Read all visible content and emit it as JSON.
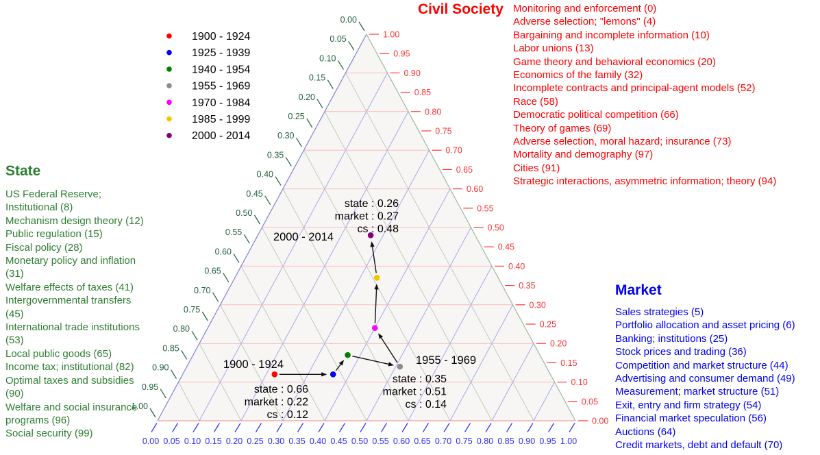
{
  "panels": {
    "civil_society": {
      "title": "Civil Society",
      "color": "#ff0000",
      "topics": [
        "Monitoring and enforcement (0)",
        "Adverse selection; \"lemons\" (4)",
        "Bargaining and incomplete information (10)",
        "Labor unions (13)",
        "Game theory and behavioral economics (20)",
        "Economics of the family (32)",
        "Incomplete contracts and principal-agent models (52)",
        "Race (58)",
        "Democratic political competition (66)",
        "Theory of games (69)",
        "Adverse selection, moral hazard; insurance (73)",
        "Mortality and demography (97)",
        "Cities (91)",
        "Strategic interactions, asymmetric information; theory (94)"
      ]
    },
    "state": {
      "title": "State",
      "color": "#2e7d32",
      "topics": [
        "US Federal Reserve; Institutional (8)",
        "Mechanism design theory (12)",
        "Public regulation (15)",
        "Fiscal policy (28)",
        "Monetary policy and inflation (31)",
        "Welfare effects of taxes (41)",
        "Intergovernmental transfers (45)",
        "International trade institutions (53)",
        "Local public goods (65)",
        "Income tax; institutional (82)",
        "Optimal taxes and subsidies (90)",
        "Welfare and social insurance programs (96)",
        "Social security (99)"
      ]
    },
    "market": {
      "title": "Market",
      "color": "#0000ee",
      "topics": [
        "Sales strategies (5)",
        "Portfolio allocation and asset pricing (6)",
        "Banking; institutions (25)",
        "Stock prices and trading (36)",
        "Competition and market structure (44)",
        "Advertising and consumer demand (49)",
        "Measurement; market structure (51)",
        "Exit, entry and firm strategy (54)",
        "Financial market speculation (56)",
        "Auctions (64)",
        "Credit markets, debt and default (70)"
      ]
    }
  },
  "legend": {
    "items": [
      {
        "label": "1900 - 1924",
        "color": "#ff0000"
      },
      {
        "label": "1925 - 1939",
        "color": "#0000ff"
      },
      {
        "label": "1940 - 1954",
        "color": "#008000"
      },
      {
        "label": "1955 - 1969",
        "color": "#8c8c8c"
      },
      {
        "label": "1970 - 1984",
        "color": "#ff00ff"
      },
      {
        "label": "1985 - 1999",
        "color": "#f5c400"
      },
      {
        "label": "2000 - 2014",
        "color": "#800080"
      }
    ]
  },
  "chart_data": {
    "type": "scatter",
    "variant": "ternary",
    "axes": {
      "bottom": {
        "pole": "market",
        "min": 0,
        "max": 1,
        "tick_step": 0.05,
        "grid_step": 0.1,
        "tick_color": "#2a2aff",
        "grid_color": "#a6a6e6",
        "edge_color": "#ee9c9c"
      },
      "left": {
        "pole": "state",
        "min": 0,
        "max": 1,
        "tick_step": 0.05,
        "grid_step": 0.1,
        "tick_color": "#1e5e3e",
        "grid_color": "#b9cdb9",
        "edge_color": "#8080d8"
      },
      "right": {
        "pole": "civil society",
        "min": 0,
        "max": 1,
        "tick_step": 0.05,
        "grid_step": 0.1,
        "tick_color": "#ff3333",
        "grid_color": "#f5bcbc",
        "edge_color": "#9cb89c"
      }
    },
    "points": [
      {
        "period": "1900 - 1924",
        "color": "#ff0000",
        "state": 0.66,
        "market": 0.22,
        "cs": 0.12
      },
      {
        "period": "1925 - 1939",
        "color": "#0000ff",
        "state": 0.52,
        "market": 0.36,
        "cs": 0.12
      },
      {
        "period": "1940 - 1954",
        "color": "#008000",
        "state": 0.46,
        "market": 0.37,
        "cs": 0.17
      },
      {
        "period": "1955 - 1969",
        "color": "#8c8c8c",
        "state": 0.35,
        "market": 0.51,
        "cs": 0.14
      },
      {
        "period": "1970 - 1984",
        "color": "#ff00ff",
        "state": 0.36,
        "market": 0.4,
        "cs": 0.24
      },
      {
        "period": "1985 - 1999",
        "color": "#f5c400",
        "state": 0.29,
        "market": 0.34,
        "cs": 0.37
      },
      {
        "period": "2000 - 2014",
        "color": "#800080",
        "state": 0.26,
        "market": 0.27,
        "cs": 0.48
      }
    ],
    "annotations": [
      {
        "period": "1900 - 1924",
        "lines": [
          "state : 0.66",
          "market : 0.22",
          "cs : 0.12"
        ]
      },
      {
        "period": "1955 - 1969",
        "lines": [
          "state : 0.35",
          "market : 0.51",
          "cs : 0.14"
        ]
      },
      {
        "period": "2000 - 2014",
        "lines": [
          "state : 0.26",
          "market : 0.27",
          "cs : 0.48"
        ]
      }
    ]
  }
}
